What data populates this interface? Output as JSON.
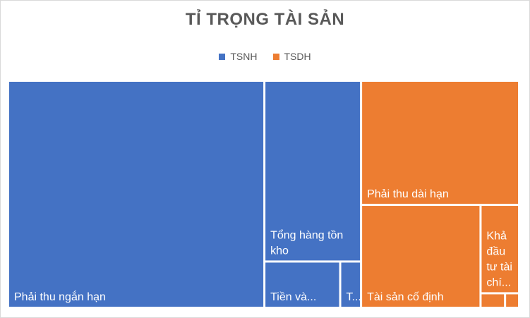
{
  "chart_data": {
    "type": "treemap",
    "title": "TỈ TRỌNG TÀI SẢN",
    "legend_position": "top",
    "groups": [
      {
        "name": "TSNH",
        "color": "#4472c4",
        "items": [
          {
            "label": "Phải thu ngắn hạn",
            "lines": [
              "Phải thu ngắn hạn"
            ],
            "value": 114.5
          },
          {
            "label": "Tổng hàng tồn kho",
            "lines": [
              "Tổng hàng tồn",
              "kho"
            ],
            "value": 34.4
          },
          {
            "label": "Tiền và...",
            "lines": [
              "Tiền và..."
            ],
            "value": 6.9
          },
          {
            "label": "T...",
            "lines": [
              "T..."
            ],
            "value": 1.9
          }
        ]
      },
      {
        "name": "TSDH",
        "color": "#ed7d31",
        "items": [
          {
            "label": "Phải thu dài hạn",
            "lines": [
              "Phải thu dài hạn"
            ],
            "value": 38.6
          },
          {
            "label": "Tài sản cố định",
            "lines": [
              "Tài sản cố định"
            ],
            "value": 24.2
          },
          {
            "label": "Khả đầu tư tài chí...",
            "lines": [
              "Khả",
              "đầu",
              "tư tài",
              "chí..."
            ],
            "value": 6.7
          },
          {
            "label": "",
            "lines": [],
            "value": 0.7
          },
          {
            "label": "",
            "lines": [],
            "value": 0.4
          }
        ]
      }
    ]
  }
}
